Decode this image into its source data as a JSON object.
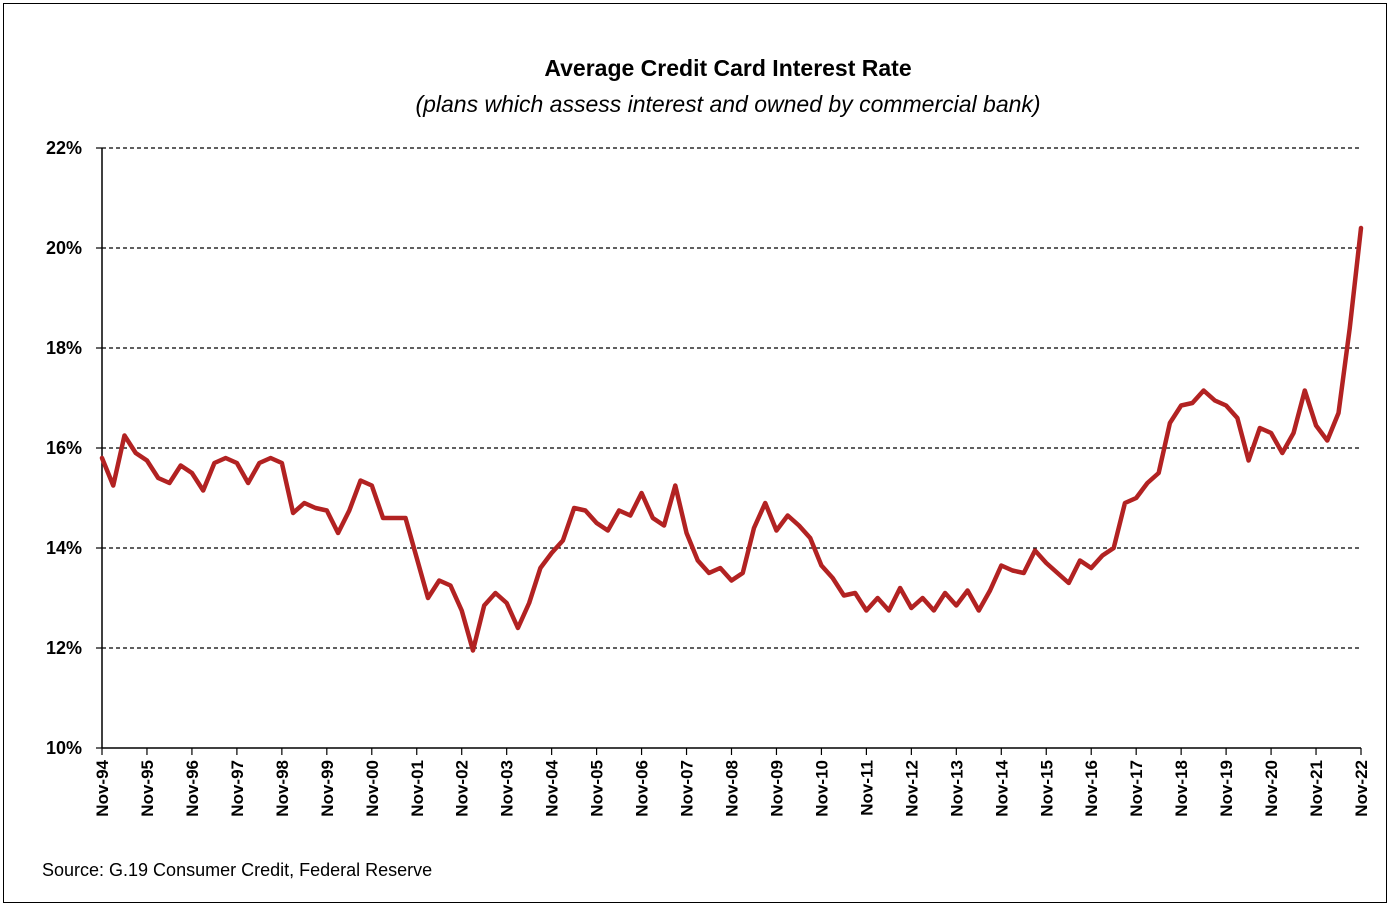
{
  "chart_data": {
    "type": "line",
    "title": "Average Credit Card Interest Rate",
    "subtitle": "(plans which assess interest and owned by commercial bank)",
    "source": "Source: G.19 Consumer Credit, Federal Reserve",
    "xlabel": "",
    "ylabel": "",
    "ylim": [
      10,
      22
    ],
    "y_ticks": [
      "10%",
      "12%",
      "14%",
      "16%",
      "18%",
      "20%",
      "22%"
    ],
    "y_tick_values": [
      10,
      12,
      14,
      16,
      18,
      20,
      22
    ],
    "x_ticks": [
      "Nov-94",
      "Nov-95",
      "Nov-96",
      "Nov-97",
      "Nov-98",
      "Nov-99",
      "Nov-00",
      "Nov-01",
      "Nov-02",
      "Nov-03",
      "Nov-04",
      "Nov-05",
      "Nov-06",
      "Nov-07",
      "Nov-08",
      "Nov-09",
      "Nov-10",
      "Nov-11",
      "Nov-12",
      "Nov-13",
      "Nov-14",
      "Nov-15",
      "Nov-16",
      "Nov-17",
      "Nov-18",
      "Nov-19",
      "Nov-20",
      "Nov-21",
      "Nov-22"
    ],
    "grid": "horizontal dashed",
    "line_color": "#B22222",
    "series": [
      {
        "values": [
          15.8,
          15.25,
          16.25,
          15.9,
          15.75,
          15.4,
          15.3,
          15.65,
          15.5,
          15.15,
          15.7,
          15.8,
          15.7,
          15.3,
          15.7,
          15.8,
          15.7,
          14.7,
          14.9,
          14.8,
          14.75,
          14.3,
          14.75,
          15.35,
          15.25,
          14.6,
          14.6,
          14.6,
          13.8,
          13.0,
          13.35,
          13.25,
          12.75,
          11.95,
          12.85,
          13.1,
          12.9,
          12.4,
          12.9,
          13.6,
          13.9,
          14.15,
          14.8,
          14.75,
          14.5,
          14.35,
          14.75,
          14.65,
          15.1,
          14.6,
          14.45,
          15.25,
          14.3,
          13.75,
          13.5,
          13.6,
          13.35,
          13.5,
          14.4,
          14.9,
          14.35,
          14.65,
          14.45,
          14.2,
          13.65,
          13.4,
          13.05,
          13.1,
          12.75,
          13.0,
          12.75,
          13.2,
          12.8,
          13.0,
          12.75,
          13.1,
          12.85,
          13.15,
          12.75,
          13.15,
          13.65,
          13.55,
          13.5,
          13.95,
          13.7,
          13.5,
          13.3,
          13.75,
          13.6,
          13.85,
          14.0,
          14.9,
          15.0,
          15.3,
          15.5,
          16.5,
          16.85,
          16.9,
          17.15,
          16.95,
          16.85,
          16.6,
          15.75,
          16.4,
          16.3,
          15.9,
          16.3,
          17.15,
          16.45,
          16.15,
          16.7,
          18.4,
          20.4
        ]
      }
    ]
  }
}
